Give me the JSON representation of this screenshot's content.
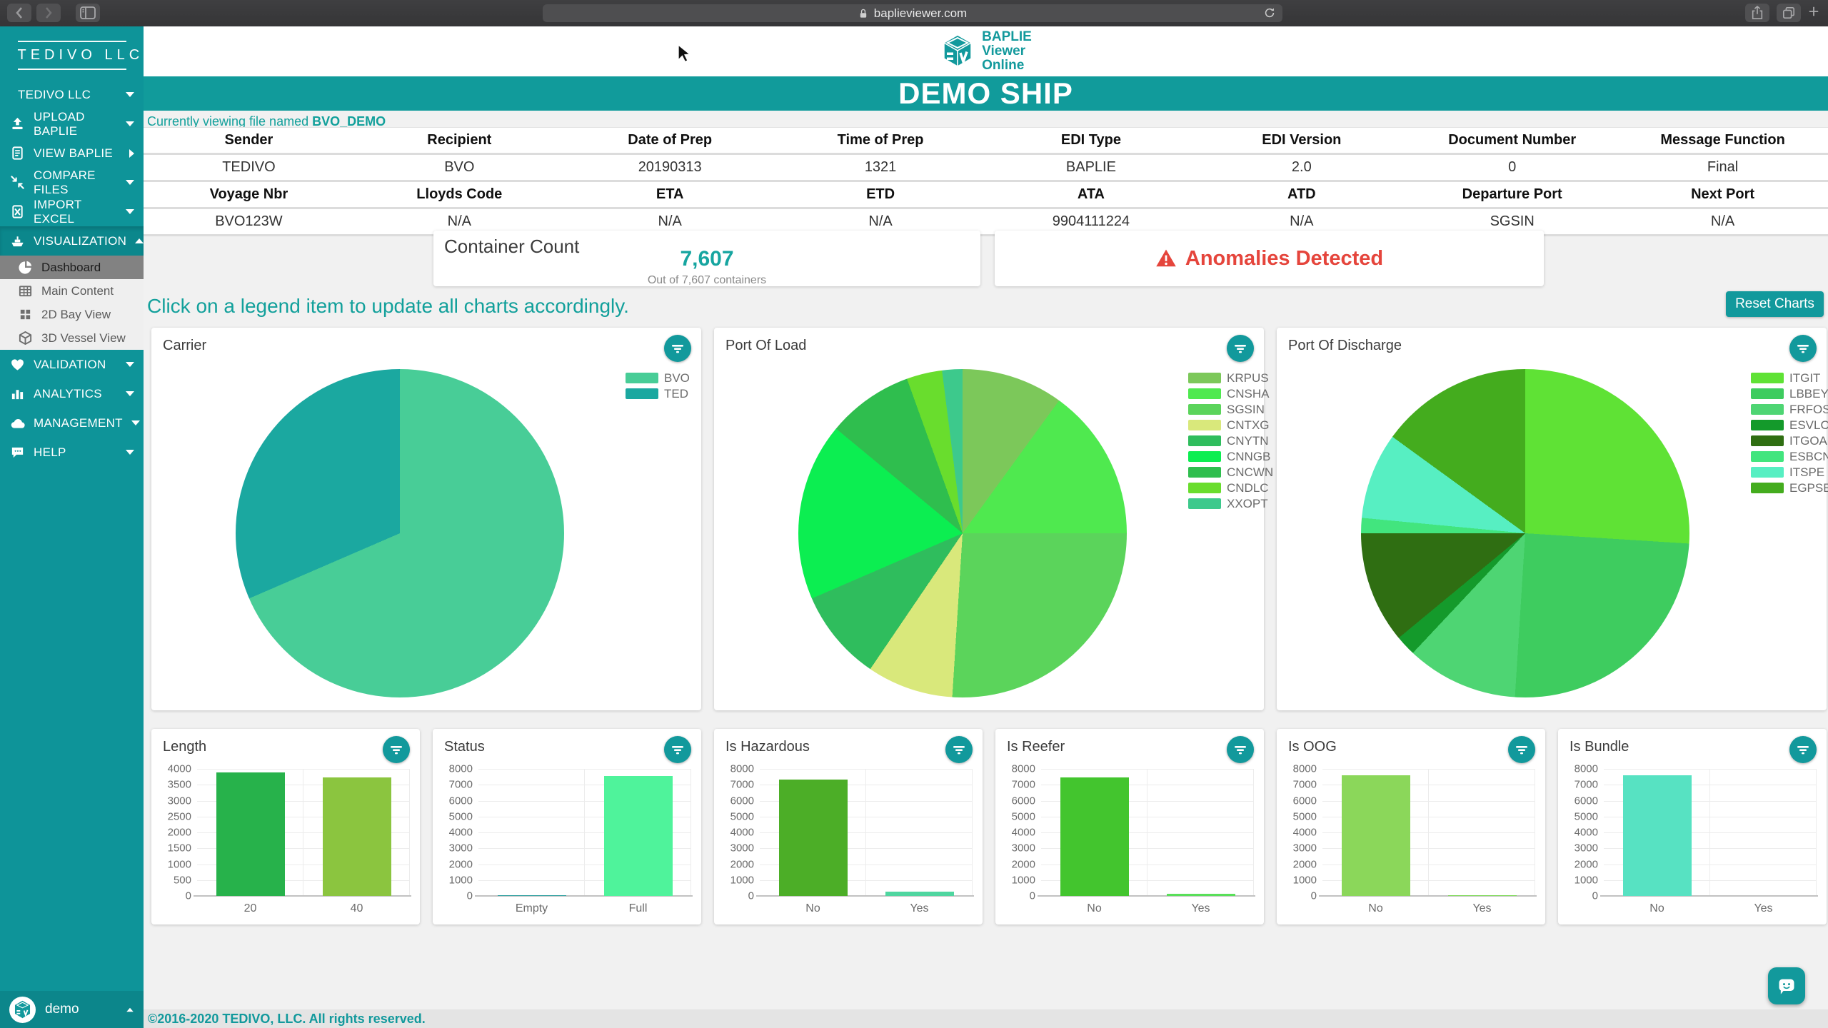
{
  "browser": {
    "url": "baplieviewer.com"
  },
  "sidebar": {
    "brand": "TEDIVO LLC",
    "items": [
      {
        "label": "TEDIVO LLC",
        "icon": "",
        "chevron": "down",
        "type": "main"
      },
      {
        "label": "UPLOAD BAPLIE",
        "icon": "upload",
        "chevron": "down",
        "type": "main"
      },
      {
        "label": "VIEW BAPLIE",
        "icon": "document",
        "chevron": "right",
        "type": "main"
      },
      {
        "label": "COMPARE FILES",
        "icon": "compare",
        "chevron": "down",
        "type": "main"
      },
      {
        "label": "IMPORT EXCEL",
        "icon": "excel",
        "chevron": "down",
        "type": "main"
      },
      {
        "label": "VISUALIZATION",
        "icon": "ship",
        "chevron": "up",
        "type": "section"
      },
      {
        "label": "Dashboard",
        "icon": "pie",
        "type": "sub",
        "active": true
      },
      {
        "label": "Main Content",
        "icon": "table",
        "type": "sub"
      },
      {
        "label": "2D Bay View",
        "icon": "grid",
        "type": "sub"
      },
      {
        "label": "3D Vessel View",
        "icon": "cube",
        "type": "sub"
      },
      {
        "label": "VALIDATION",
        "icon": "heart",
        "chevron": "down",
        "type": "main"
      },
      {
        "label": "ANALYTICS",
        "icon": "chart",
        "chevron": "down",
        "type": "main"
      },
      {
        "label": "MANAGEMENT",
        "icon": "cloud",
        "chevron": "down",
        "type": "main"
      },
      {
        "label": "HELP",
        "icon": "help",
        "chevron": "down",
        "type": "main"
      }
    ],
    "user": "demo"
  },
  "header": {
    "logo_lines": [
      "BAPLIE",
      "Viewer",
      "Online"
    ],
    "ship_name": "DEMO SHIP",
    "viewing_prefix": "Currently viewing file named ",
    "file_name": "BVO_DEMO"
  },
  "info_table": {
    "rows": [
      {
        "header": true,
        "cells": [
          "Sender",
          "Recipient",
          "Date of Prep",
          "Time of Prep",
          "EDI Type",
          "EDI Version",
          "Document Number",
          "Message Function"
        ]
      },
      {
        "header": false,
        "cells": [
          "TEDIVO",
          "BVO",
          "20190313",
          "1321",
          "BAPLIE",
          "2.0",
          "0",
          "Final"
        ]
      },
      {
        "header": true,
        "cells": [
          "Voyage Nbr",
          "Lloyds Code",
          "ETA",
          "ETD",
          "ATA",
          "ATD",
          "Departure Port",
          "Next Port"
        ]
      },
      {
        "header": false,
        "cells": [
          "BVO123W",
          "N/A",
          "N/A",
          "N/A",
          "9904111224",
          "N/A",
          "SGSIN",
          "N/A"
        ]
      }
    ]
  },
  "summary": {
    "container_title": "Container Count",
    "count": "7,607",
    "subtitle": "Out of 7,607 containers",
    "anomalies_text": "Anomalies Detected"
  },
  "hint": "Click on a legend item to update all charts accordingly.",
  "reset_label": "Reset Charts",
  "accent_color": "#12999C",
  "alert_color": "#E5453C",
  "chart_data": [
    {
      "type": "pie",
      "title": "Carrier",
      "legend_position": "right",
      "unit": "percent",
      "labels": [
        "BVO",
        "TED"
      ],
      "values": [
        68.5,
        31.5
      ],
      "colors": [
        "#48CD97",
        "#1BA8A0"
      ]
    },
    {
      "type": "pie",
      "title": "Port Of Load",
      "legend_position": "right",
      "unit": "percent",
      "labels": [
        "KRPUS",
        "CNSHA",
        "SGSIN",
        "CNTXG",
        "CNYTN",
        "CNNGB",
        "CNCWN",
        "CNDLC",
        "XXOPT"
      ],
      "values": [
        10,
        15,
        26,
        8.5,
        9,
        17.5,
        8.5,
        3.5,
        2
      ],
      "colors": [
        "#7CC85A",
        "#4FE94F",
        "#5BD45B",
        "#D9E87B",
        "#2FBD5D",
        "#0CEE51",
        "#2FBE4E",
        "#69DD2D",
        "#3DC98C"
      ]
    },
    {
      "type": "pie",
      "title": "Port Of Discharge",
      "legend_position": "right",
      "unit": "percent",
      "labels": [
        "ITGIT",
        "LBBEY",
        "FRFOS",
        "ESVLC",
        "ITGOA",
        "ESBCN",
        "ITSPE",
        "EGPSE"
      ],
      "values": [
        26,
        25,
        11,
        2,
        11,
        1.5,
        8.5,
        15
      ],
      "colors": [
        "#5FE235",
        "#3ECC5F",
        "#4ED573",
        "#149A2B",
        "#2F6E12",
        "#42E57E",
        "#57EFC2",
        "#44AC1E"
      ]
    },
    {
      "type": "bar",
      "title": "Length",
      "categories": [
        "20",
        "40"
      ],
      "values": [
        3890,
        3720
      ],
      "colors": [
        "#27B24B",
        "#8BC53F"
      ],
      "ylim": [
        0,
        4000
      ],
      "ystep": 500,
      "grid": true
    },
    {
      "type": "bar",
      "title": "Status",
      "categories": [
        "Empty",
        "Full"
      ],
      "values": [
        60,
        7550
      ],
      "colors": [
        "#2B9E9E",
        "#4FF39B"
      ],
      "ylim": [
        0,
        8000
      ],
      "ystep": 1000,
      "grid": true
    },
    {
      "type": "bar",
      "title": "Is Hazardous",
      "categories": [
        "No",
        "Yes"
      ],
      "values": [
        7340,
        270
      ],
      "colors": [
        "#4CAE27",
        "#4FD6A0"
      ],
      "ylim": [
        0,
        8000
      ],
      "ystep": 1000,
      "grid": true
    },
    {
      "type": "bar",
      "title": "Is Reefer",
      "categories": [
        "No",
        "Yes"
      ],
      "values": [
        7480,
        130
      ],
      "colors": [
        "#43C52E",
        "#59DF59"
      ],
      "ylim": [
        0,
        8000
      ],
      "ystep": 1000,
      "grid": true
    },
    {
      "type": "bar",
      "title": "Is OOG",
      "categories": [
        "No",
        "Yes"
      ],
      "values": [
        7600,
        40
      ],
      "colors": [
        "#8BD75A",
        "#7ED957"
      ],
      "ylim": [
        0,
        8000
      ],
      "ystep": 1000,
      "grid": true
    },
    {
      "type": "bar",
      "title": "Is Bundle",
      "categories": [
        "No",
        "Yes"
      ],
      "values": [
        7600,
        0
      ],
      "colors": [
        "#57E2C2",
        "#57E2C2"
      ],
      "ylim": [
        0,
        8000
      ],
      "ystep": 1000,
      "grid": true
    }
  ],
  "footer_text": "©2016-2020 TEDIVO, LLC. All rights reserved."
}
